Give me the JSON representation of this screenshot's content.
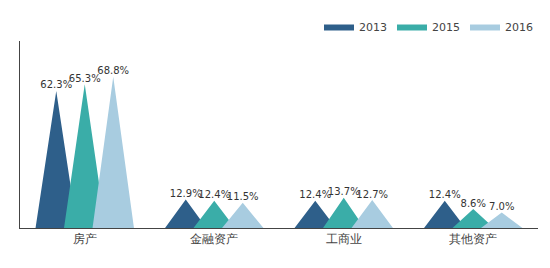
{
  "chart_data": {
    "type": "bar",
    "marker": "triangle",
    "categories": [
      "房产",
      "金融资产",
      "工商业",
      "其他资产"
    ],
    "series": [
      {
        "name": "2013",
        "color": "#2e5f8a",
        "values": [
          62.3,
          12.9,
          12.4,
          12.4
        ],
        "value_labels": [
          "62.3%",
          "12.9%",
          "12.4%",
          "12.4%"
        ]
      },
      {
        "name": "2015",
        "color": "#3aada8",
        "values": [
          65.3,
          12.4,
          13.7,
          8.6
        ],
        "value_labels": [
          "65.3%",
          "12.4%",
          "13.7%",
          "8.6%"
        ]
      },
      {
        "name": "2016",
        "color": "#a8cce0",
        "values": [
          68.8,
          11.5,
          12.7,
          7.0
        ],
        "value_labels": [
          "68.8%",
          "11.5%",
          "12.7%",
          "7.0%"
        ]
      }
    ],
    "ylim": [
      0,
      85
    ],
    "data_labels": true,
    "tick_labels": "x",
    "legend": "upper right",
    "grid": false
  }
}
